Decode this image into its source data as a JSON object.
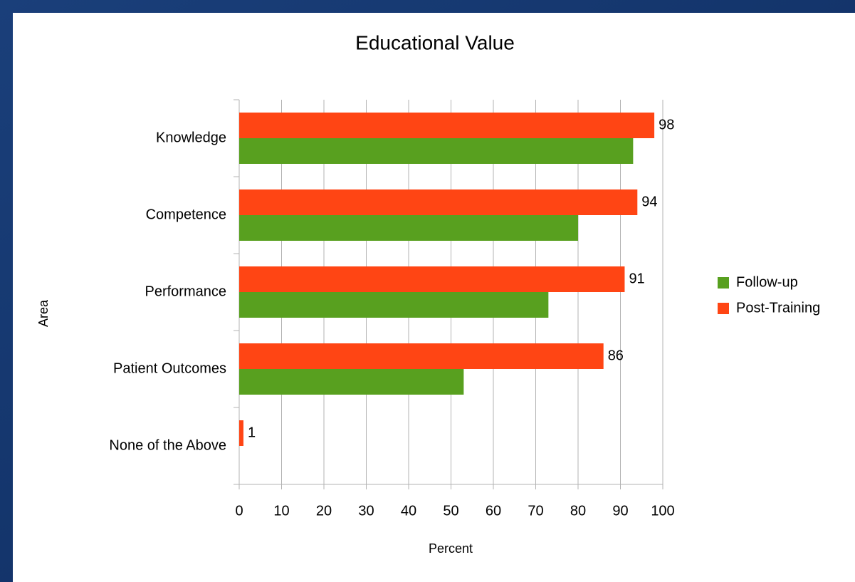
{
  "chart_data": {
    "type": "bar",
    "orientation": "horizontal",
    "title": "Educational Value",
    "x_label": "Percent",
    "y_label": "Area",
    "categories": [
      "Knowledge",
      "Competence",
      "Performance",
      "Patient Outcomes",
      "None of the Above"
    ],
    "series": [
      {
        "name": "Follow-up",
        "color": "#58a01f",
        "values": [
          93,
          80,
          73,
          53,
          0
        ]
      },
      {
        "name": "Post-Training",
        "color": "#ff4514",
        "values": [
          98,
          94,
          91,
          86,
          1
        ]
      }
    ],
    "xlim": [
      0,
      100
    ],
    "xticks": [
      0,
      10,
      20,
      30,
      40,
      50,
      60,
      70,
      80,
      90,
      100
    ],
    "grid": true,
    "legend": "right"
  }
}
